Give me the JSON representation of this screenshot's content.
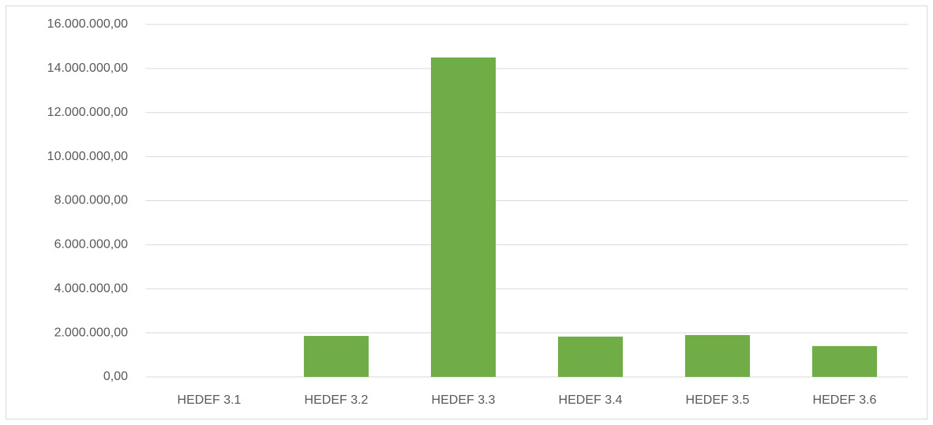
{
  "chart_data": {
    "type": "bar",
    "categories": [
      "HEDEF 3.1",
      "HEDEF 3.2",
      "HEDEF 3.3",
      "HEDEF 3.4",
      "HEDEF 3.5",
      "HEDEF 3.6"
    ],
    "values": [
      0,
      1860000,
      14500000,
      1830000,
      1900000,
      1400000
    ],
    "color": "#70ad47",
    "ylim": [
      0,
      16000000
    ],
    "yticks": [
      {
        "value": 0,
        "label": "0,00"
      },
      {
        "value": 2000000,
        "label": "2.000.000,00"
      },
      {
        "value": 4000000,
        "label": "4.000.000,00"
      },
      {
        "value": 6000000,
        "label": "6.000.000,00"
      },
      {
        "value": 8000000,
        "label": "8.000.000,00"
      },
      {
        "value": 10000000,
        "label": "10.000.000,00"
      },
      {
        "value": 12000000,
        "label": "12.000.000,00"
      },
      {
        "value": 14000000,
        "label": "14.000.000,00"
      },
      {
        "value": 16000000,
        "label": "16.000.000,00"
      }
    ],
    "grid": true
  }
}
